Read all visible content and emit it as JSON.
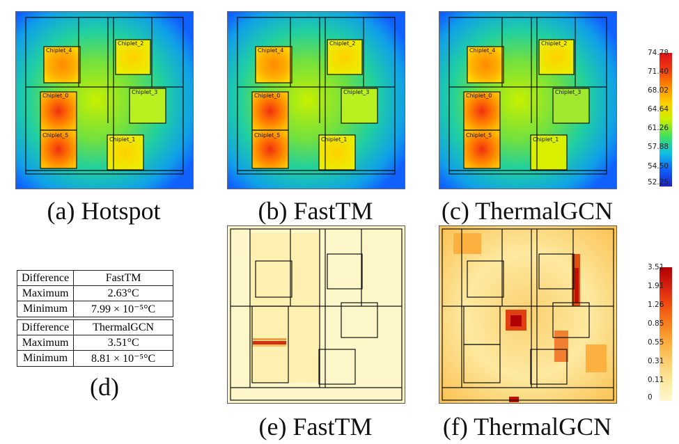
{
  "panels_top": [
    {
      "caption": "(a) Hotspot"
    },
    {
      "caption": "(b) FastTM"
    },
    {
      "caption": "(c) ThermalGCN"
    }
  ],
  "panels_bottom": [
    {
      "caption": "(e) FastTM"
    },
    {
      "caption": "(f) ThermalGCN"
    }
  ],
  "chiplet_labels": [
    "Chiplet_4",
    "Chiplet_2",
    "Chiplet_0",
    "Chiplet_3",
    "Chiplet_5",
    "Chiplet_1"
  ],
  "temp_scale": {
    "ticks": [
      "74.78",
      "71.40",
      "68.02",
      "64.64",
      "61.26",
      "57.88",
      "54.50",
      "52.25"
    ],
    "colors": [
      "#e0101a",
      "#f03a10",
      "#ff8a00",
      "#ffd000",
      "#c8f000",
      "#40e060",
      "#10c0e0",
      "#1060ff",
      "#2020c0"
    ]
  },
  "diff_scale": {
    "ticks": [
      "3.51",
      "1.91",
      "1.26",
      "0.85",
      "0.55",
      "0.31",
      "0.11",
      "0"
    ],
    "colors": [
      "#b00000",
      "#d82010",
      "#f05010",
      "#f88020",
      "#fbb040",
      "#fcd070",
      "#fde9a0",
      "#fff8d0"
    ]
  },
  "table": {
    "caption": "(d)",
    "rows": [
      [
        "Difference",
        "FastTM"
      ],
      [
        "Maximum",
        "2.63°C"
      ],
      [
        "Minimum",
        "7.99 × 10⁻⁵°C"
      ],
      [
        "Difference",
        "ThermalGCN"
      ],
      [
        "Maximum",
        "3.51°C"
      ],
      [
        "Minimum",
        "8.81 × 10⁻⁵°C"
      ]
    ]
  }
}
